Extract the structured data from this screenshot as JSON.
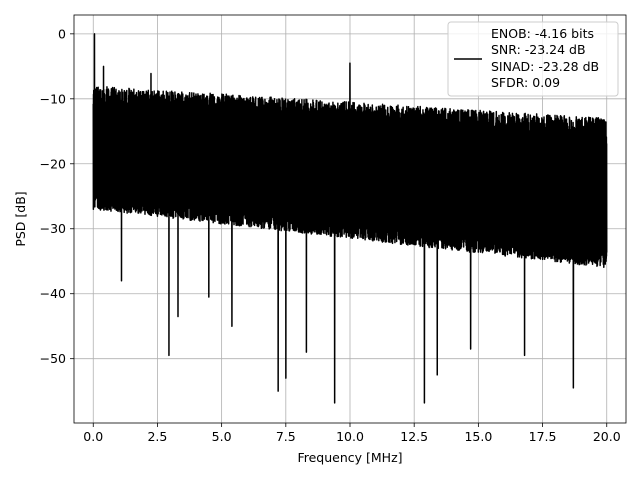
{
  "chart_data": {
    "type": "line",
    "xlabel": "Frequency [MHz]",
    "ylabel": "PSD [dB]",
    "xlim": [
      -0.75,
      20.75
    ],
    "ylim": [
      -59.9,
      2.9
    ],
    "xticks": [
      0.0,
      2.5,
      5.0,
      7.5,
      10.0,
      12.5,
      15.0,
      17.5,
      20.0
    ],
    "xtick_labels": [
      "0.0",
      "2.5",
      "5.0",
      "7.5",
      "10.0",
      "12.5",
      "15.0",
      "17.5",
      "20.0"
    ],
    "yticks": [
      0,
      -10,
      -20,
      -30,
      -40,
      -50
    ],
    "ytick_labels": [
      "0",
      "−10",
      "−20",
      "−30",
      "−40",
      "−50"
    ],
    "grid": true,
    "legend": {
      "position": "top-right",
      "lines": [
        "ENOB: -4.16 bits",
        "SNR: -23.24 dB",
        "SINAD: -23.28 dB",
        "SFDR: 0.09"
      ]
    },
    "series": [
      {
        "color": "#000000",
        "x_range": [
          0.0,
          20.0
        ],
        "band_upper_start": -8,
        "band_upper_end": -13,
        "band_lower_start": -27,
        "band_lower_end": -36,
        "peaks": [
          {
            "x": 0.05,
            "y": 0.0
          },
          {
            "x": 0.4,
            "y": -5.0
          },
          {
            "x": 1.1,
            "y": -6.2
          },
          {
            "x": 2.25,
            "y": -6.1
          },
          {
            "x": 10.0,
            "y": -4.5
          }
        ],
        "dips": [
          {
            "x": 1.1,
            "y": -38.0
          },
          {
            "x": 2.95,
            "y": -49.5
          },
          {
            "x": 3.3,
            "y": -43.5
          },
          {
            "x": 4.5,
            "y": -40.5
          },
          {
            "x": 5.4,
            "y": -45.0
          },
          {
            "x": 7.2,
            "y": -55.0
          },
          {
            "x": 7.5,
            "y": -53.0
          },
          {
            "x": 8.3,
            "y": -49.0
          },
          {
            "x": 9.4,
            "y": -56.8
          },
          {
            "x": 12.9,
            "y": -56.8
          },
          {
            "x": 13.4,
            "y": -52.5
          },
          {
            "x": 14.7,
            "y": -48.5
          },
          {
            "x": 16.8,
            "y": -49.5
          },
          {
            "x": 18.7,
            "y": -54.5
          }
        ]
      }
    ]
  }
}
